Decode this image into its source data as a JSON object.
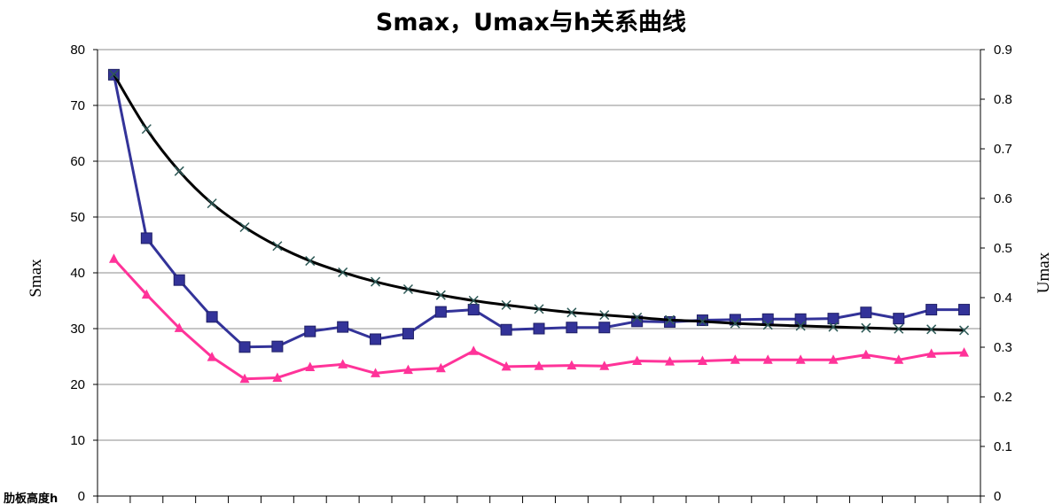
{
  "chart_data": {
    "type": "line",
    "title": "Smax，Umax与h关系曲线",
    "xlabel": "肋板高度h",
    "ylabel": "Smax",
    "y2label": "Umax",
    "ylim": [
      0,
      80
    ],
    "y2lim": [
      0,
      0.9
    ],
    "yticks": [
      "0",
      "10",
      "20",
      "30",
      "40",
      "50",
      "60",
      "70",
      "80"
    ],
    "y2ticks": [
      "0",
      "0.1",
      "0.2",
      "0.3",
      "0.4",
      "0.5",
      "0.6",
      "0.7",
      "0.8",
      "0.9"
    ],
    "grid": true,
    "legend": "none",
    "x": [
      1,
      2,
      3,
      4,
      5,
      6,
      7,
      8,
      9,
      10,
      11,
      12,
      13,
      14,
      15,
      16,
      17,
      18,
      19,
      20,
      21,
      22,
      23,
      24,
      25,
      26,
      27
    ],
    "series": [
      {
        "axis": "left",
        "marker": "square",
        "color": "#333399",
        "values": [
          75.5,
          46.2,
          38.7,
          32.1,
          26.7,
          26.8,
          29.5,
          30.3,
          28.1,
          29.1,
          33,
          33.4,
          29.8,
          30,
          30.2,
          30.2,
          31.3,
          31.2,
          31.5,
          31.6,
          31.7,
          31.7,
          31.8,
          32.9,
          31.8,
          33.4,
          33.4
        ]
      },
      {
        "axis": "left",
        "marker": "triangle",
        "color": "#ff3399",
        "values": [
          42.5,
          36.1,
          30.1,
          24.9,
          21,
          21.2,
          23.1,
          23.6,
          22,
          22.6,
          22.9,
          26,
          23.2,
          23.3,
          23.4,
          23.3,
          24.2,
          24.1,
          24.2,
          24.4,
          24.4,
          24.4,
          24.4,
          25.3,
          24.4,
          25.5,
          25.7
        ]
      },
      {
        "axis": "right",
        "marker": "cross",
        "color": "#000000",
        "values": [
          0.85,
          0.74,
          0.655,
          0.59,
          0.542,
          0.504,
          0.474,
          0.451,
          0.432,
          0.417,
          0.405,
          0.394,
          0.385,
          0.377,
          0.37,
          0.365,
          0.36,
          0.355,
          0.352,
          0.348,
          0.345,
          0.343,
          0.341,
          0.339,
          0.337,
          0.336,
          0.334
        ]
      }
    ]
  }
}
